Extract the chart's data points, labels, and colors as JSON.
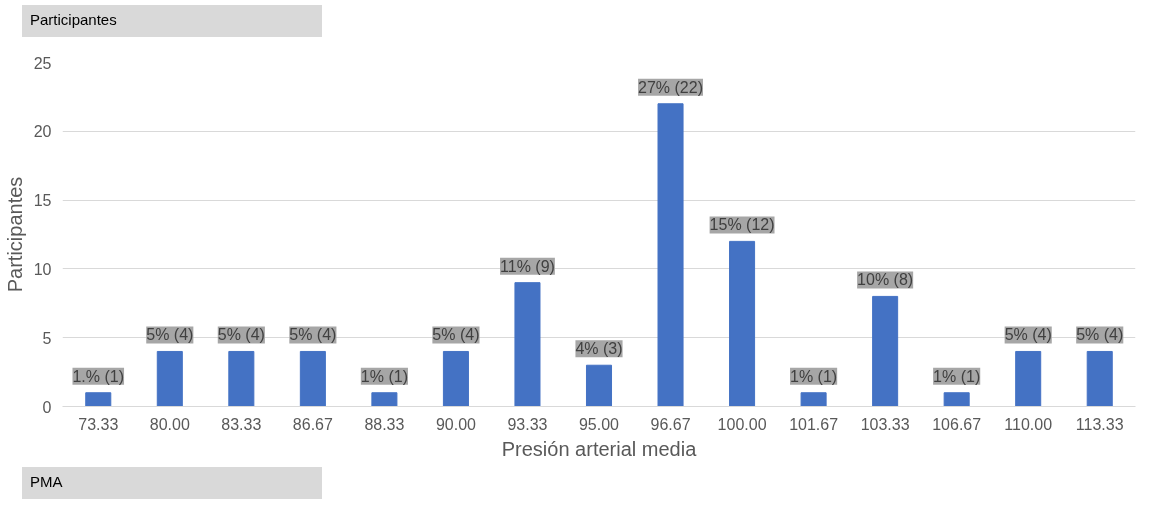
{
  "chart_data": {
    "type": "bar",
    "xlabel": "Presión arterial media",
    "ylabel": "Participantes",
    "annotations": [
      "Participantes",
      "PMA"
    ],
    "categories": [
      "73.33",
      "80.00",
      "83.33",
      "86.67",
      "88.33",
      "90.00",
      "93.33",
      "95.00",
      "96.67",
      "100.00",
      "101.67",
      "103.33",
      "106.67",
      "110.00",
      "113.33"
    ],
    "values": [
      1,
      4,
      4,
      4,
      1,
      4,
      9,
      3,
      22,
      12,
      1,
      8,
      1,
      4,
      4
    ],
    "value_labels": [
      "1.% (1)",
      "5% (4)",
      "5% (4)",
      "5% (4)",
      "1% (1)",
      "5% (4)",
      "11% (9)",
      "4% (3)",
      "27% (22)",
      "15% (12)",
      "1% (1)",
      "10% (8)",
      "1% (1)",
      "5% (4)",
      "5% (4)"
    ],
    "color": "#4472c4",
    "ylim": [
      0,
      25
    ],
    "yticks": [
      0,
      5,
      10,
      15,
      20,
      25
    ],
    "grid": "y"
  }
}
